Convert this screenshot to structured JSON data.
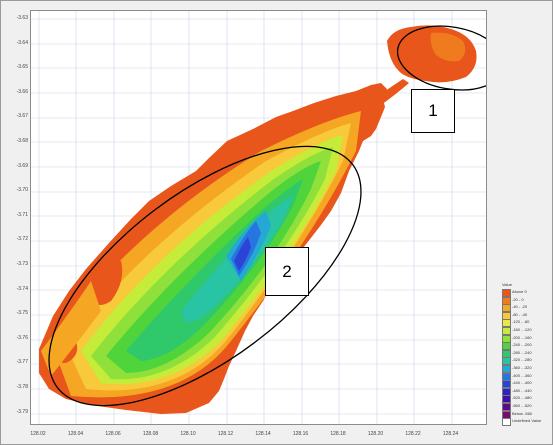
{
  "map": {
    "y_ticks": [
      "-3.63",
      "-3.64",
      "-3.65",
      "-3.66",
      "-3.67",
      "-3.68",
      "-3.69",
      "-3.70",
      "-3.71",
      "-3.72",
      "-3.73",
      "-3.74",
      "-3.75",
      "-3.76",
      "-3.77",
      "-3.78",
      "-3.79"
    ],
    "x_ticks": [
      "128.02",
      "128.04",
      "128.06",
      "128.08",
      "128.10",
      "128.12",
      "128.14",
      "128.16",
      "128.18",
      "128.20",
      "128.22",
      "128.24"
    ],
    "callouts": [
      {
        "label": "1"
      },
      {
        "label": "2"
      }
    ]
  },
  "legend": {
    "title": "Value",
    "items": [
      {
        "label": "Above 0",
        "color": "#e8561c"
      },
      {
        "label": "-20 - 0",
        "color": "#f07a1e"
      },
      {
        "label": "-40 - -20",
        "color": "#f5a623"
      },
      {
        "label": "-80 - -40",
        "color": "#f8c93a"
      },
      {
        "label": "-120 - -80",
        "color": "#e8e84a"
      },
      {
        "label": "-160 - -120",
        "color": "#c6ec3a"
      },
      {
        "label": "-200 - -160",
        "color": "#8fe03a"
      },
      {
        "label": "-240 - -200",
        "color": "#4fd43c"
      },
      {
        "label": "-280 - -240",
        "color": "#2fc86a"
      },
      {
        "label": "-320 - -280",
        "color": "#28c4a4"
      },
      {
        "label": "-360 - -320",
        "color": "#25a8d6"
      },
      {
        "label": "-400 - -360",
        "color": "#2874e0"
      },
      {
        "label": "-440 - -400",
        "color": "#2a44d6"
      },
      {
        "label": "-480 - -440",
        "color": "#2a22c4"
      },
      {
        "label": "-520 - -480",
        "color": "#3c10a8"
      },
      {
        "label": "-560 - -520",
        "color": "#5a0a8c"
      },
      {
        "label": "Below -560",
        "color": "#7a0a70"
      },
      {
        "label": "Undefined Value",
        "color": "#ffffff"
      }
    ]
  }
}
